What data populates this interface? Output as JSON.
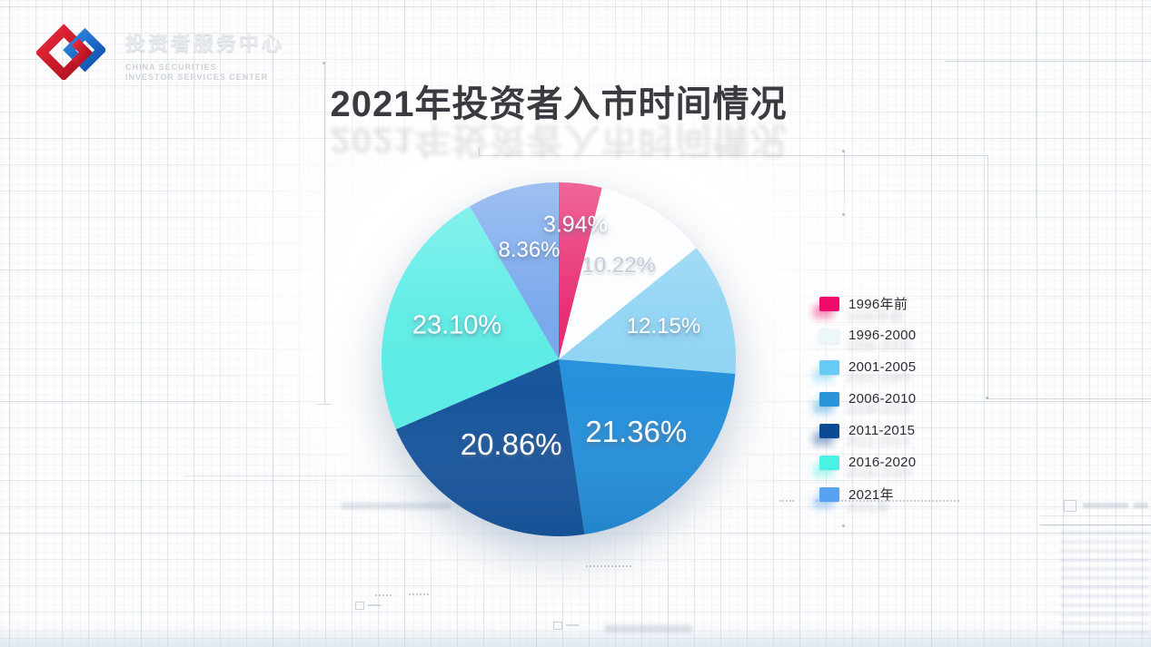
{
  "header": {
    "logo": {
      "org_cn": "投资者服务中心",
      "org_en_line1": "CHINA SECURITIES",
      "org_en_line2": "INVESTOR SERVICES CENTER"
    }
  },
  "title": "2021年投资者入市时间情况",
  "chart_data": {
    "type": "pie",
    "title": "2021年投资者入市时间情况",
    "unit": "%",
    "start_angle_deg": 0,
    "direction": "clockwise",
    "legend_position": "right",
    "slices": [
      {
        "label": "1996年前",
        "value": 3.94,
        "display": "3.94%",
        "color": "#e8246e",
        "label_color": "#ffffff"
      },
      {
        "label": "1996-2000",
        "value": 10.22,
        "display": "10.22%",
        "color": "#fbfdfe",
        "label_color": "#c6cdd8"
      },
      {
        "label": "2001-2005",
        "value": 12.15,
        "display": "12.15%",
        "color": "#8fd4f3",
        "label_color": "#ffffff"
      },
      {
        "label": "2006-2010",
        "value": 21.36,
        "display": "21.36%",
        "color": "#2590db",
        "label_color": "#ffffff"
      },
      {
        "label": "2011-2015",
        "value": 20.86,
        "display": "20.86%",
        "color": "#17549b",
        "label_color": "#ffffff"
      },
      {
        "label": "2016-2020",
        "value": 23.1,
        "display": "23.10%",
        "color": "#5bece5",
        "label_color": "#ffffff"
      },
      {
        "label": "2021年",
        "value": 8.36,
        "display": "8.36%",
        "color": "#74a5ec",
        "label_color": "#ffffff"
      }
    ],
    "legend": [
      {
        "label": "1996年前",
        "color": "#ee0a6a"
      },
      {
        "label": "1996-2000",
        "color": "#edf6fa"
      },
      {
        "label": "2001-2005",
        "color": "#66ccf5"
      },
      {
        "label": "2006-2010",
        "color": "#2b94d9"
      },
      {
        "label": "2011-2015",
        "color": "#0c4a96"
      },
      {
        "label": "2016-2020",
        "color": "#49f2e2"
      },
      {
        "label": "2021年",
        "color": "#57a3f2"
      }
    ],
    "layout": {
      "label_radius": [
        0.765,
        0.63,
        0.62,
        0.6,
        0.55,
        0.605,
        0.64
      ],
      "label_size": [
        25,
        24,
        24,
        33,
        33,
        29,
        24
      ]
    }
  }
}
